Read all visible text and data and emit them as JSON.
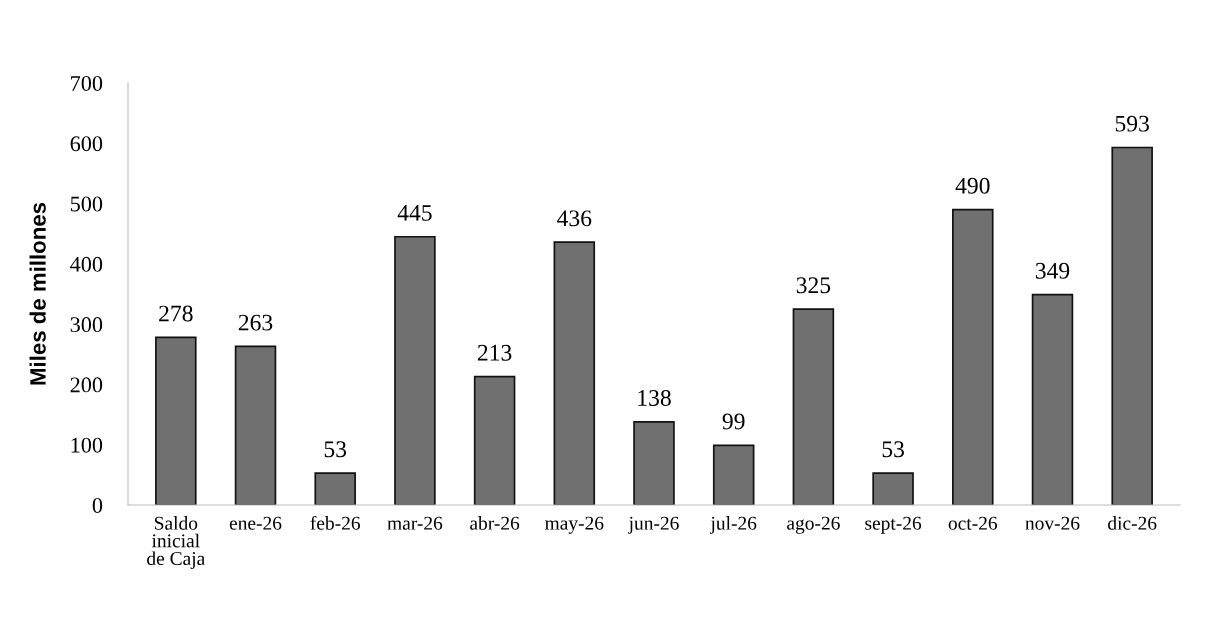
{
  "chart_data": {
    "type": "bar",
    "ylabel": "Miles de millones",
    "categories": [
      "Saldo\ninicial\nde Caja",
      "ene-26",
      "feb-26",
      "mar-26",
      "abr-26",
      "may-26",
      "jun-26",
      "jul-26",
      "ago-26",
      "sept-26",
      "oct-26",
      "nov-26",
      "dic-26"
    ],
    "values": [
      278,
      263,
      53,
      445,
      213,
      436,
      138,
      99,
      325,
      53,
      490,
      349,
      593
    ],
    "color": "#707070",
    "ylim": [
      0,
      700
    ],
    "yticks": [
      0,
      100,
      200,
      300,
      400,
      500,
      600,
      700
    ],
    "data_labels": true,
    "grid": false,
    "legend": false
  }
}
